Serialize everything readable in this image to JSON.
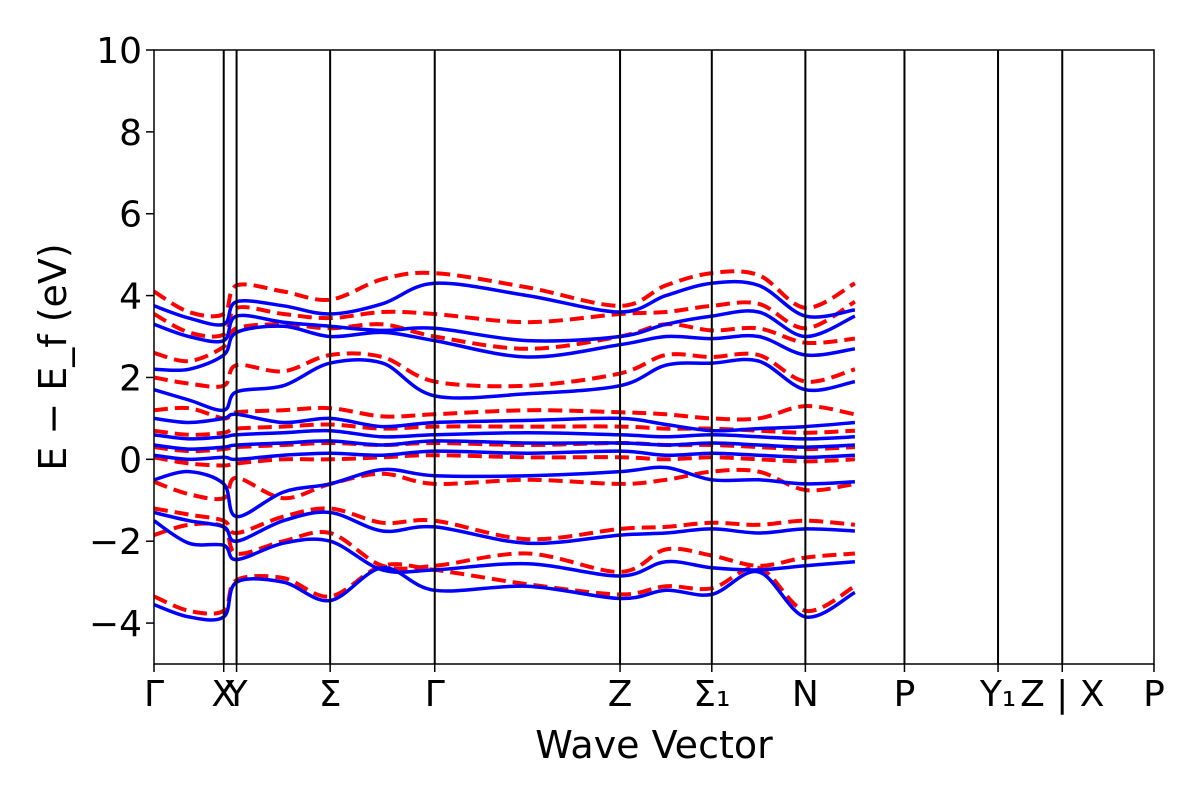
{
  "chart_data": {
    "type": "line",
    "xlabel": "Wave Vector",
    "ylabel": "E − E_f (eV)",
    "ylim": [
      -5,
      10
    ],
    "y_ticks": [
      -4,
      -2,
      0,
      2,
      4,
      6,
      8,
      10
    ],
    "y_tick_labels": [
      "−4",
      "−2",
      "0",
      "2",
      "4",
      "6",
      "8",
      "10"
    ],
    "k_points": [
      {
        "label": "Γ",
        "x": 0.0
      },
      {
        "label": "X",
        "x": 0.38
      },
      {
        "label": "Y",
        "x": 0.45
      },
      {
        "label": "Σ",
        "x": 0.96
      },
      {
        "label": "Γ",
        "x": 1.53
      },
      {
        "label": "Z",
        "x": 2.54
      },
      {
        "label": "Σ₁",
        "x": 3.04
      },
      {
        "label": "N",
        "x": 3.55
      },
      {
        "label": "P",
        "x": 4.09
      },
      {
        "label": "Y₁",
        "x": 4.6
      },
      {
        "label": "Z | X",
        "x": 4.95
      },
      {
        "label": "P",
        "x": 5.45
      }
    ],
    "grid": false,
    "legend": "none",
    "series": [
      {
        "style": "solid",
        "color": "#0000ff",
        "bands": [
          [
            -3.55,
            -3.85,
            -3.85,
            -3.0,
            -3.0,
            -3.45,
            -2.65,
            -3.2,
            -3.1,
            -3.4,
            -3.2,
            -3.3,
            -2.75,
            -3.85,
            -3.25
          ],
          [
            -1.5,
            -2.05,
            -2.1,
            -2.45,
            -2.05,
            -2.0,
            -2.7,
            -2.7,
            -2.55,
            -2.85,
            -2.5,
            -2.65,
            -2.7,
            -2.6,
            -2.5
          ],
          [
            -1.3,
            -1.5,
            -1.65,
            -2.0,
            -1.5,
            -1.3,
            -1.75,
            -1.65,
            -2.05,
            -1.85,
            -1.8,
            -1.7,
            -1.8,
            -1.7,
            -1.75
          ],
          [
            -0.5,
            -0.3,
            -0.6,
            -1.4,
            -0.8,
            -0.6,
            -0.25,
            -0.4,
            -0.4,
            -0.3,
            -0.2,
            -0.5,
            -0.5,
            -0.6,
            -0.55
          ],
          [
            0.1,
            0.0,
            0.05,
            0.0,
            0.1,
            0.15,
            0.1,
            0.2,
            0.15,
            0.2,
            0.1,
            0.15,
            0.1,
            0.05,
            0.1
          ],
          [
            0.35,
            0.25,
            0.3,
            0.35,
            0.4,
            0.45,
            0.35,
            0.45,
            0.4,
            0.4,
            0.35,
            0.4,
            0.35,
            0.3,
            0.35
          ],
          [
            0.6,
            0.5,
            0.55,
            0.6,
            0.65,
            0.7,
            0.55,
            0.6,
            0.65,
            0.6,
            0.55,
            0.6,
            0.55,
            0.5,
            0.55
          ],
          [
            1.0,
            0.9,
            1.0,
            1.1,
            0.9,
            1.0,
            0.8,
            0.9,
            0.95,
            1.0,
            0.85,
            0.7,
            0.75,
            0.8,
            0.9
          ],
          [
            1.7,
            1.45,
            1.2,
            1.65,
            1.8,
            2.35,
            2.35,
            1.55,
            1.6,
            1.8,
            2.3,
            2.35,
            2.4,
            1.7,
            1.9
          ],
          [
            2.2,
            2.2,
            2.55,
            3.1,
            3.25,
            3.0,
            3.1,
            2.9,
            2.5,
            2.8,
            3.0,
            2.95,
            3.0,
            2.55,
            2.7
          ],
          [
            3.3,
            3.0,
            2.9,
            3.5,
            3.35,
            3.25,
            3.15,
            3.2,
            2.9,
            3.0,
            3.3,
            3.5,
            3.6,
            3.0,
            3.5
          ],
          [
            3.75,
            3.45,
            3.3,
            3.85,
            3.75,
            3.55,
            3.8,
            4.3,
            4.0,
            3.6,
            4.0,
            4.3,
            4.25,
            3.5,
            3.65
          ]
        ]
      },
      {
        "style": "dashed",
        "color": "#ff0000",
        "bands": [
          [
            -3.35,
            -3.7,
            -3.7,
            -2.95,
            -2.9,
            -3.35,
            -2.6,
            -2.7,
            -3.05,
            -3.3,
            -3.1,
            -3.15,
            -2.65,
            -3.7,
            -3.1
          ],
          [
            -1.85,
            -1.6,
            -1.65,
            -2.3,
            -2.0,
            -1.8,
            -2.6,
            -2.6,
            -2.3,
            -2.75,
            -2.2,
            -2.35,
            -2.6,
            -2.4,
            -2.3
          ],
          [
            -1.2,
            -1.35,
            -1.5,
            -1.8,
            -1.4,
            -1.2,
            -1.55,
            -1.5,
            -1.95,
            -1.7,
            -1.65,
            -1.55,
            -1.6,
            -1.5,
            -1.6
          ],
          [
            -0.55,
            -0.85,
            -0.95,
            -0.45,
            -0.95,
            -0.6,
            -0.35,
            -0.6,
            -0.5,
            -0.6,
            -0.5,
            -0.3,
            -0.3,
            -0.75,
            -0.6
          ],
          [
            0.05,
            -0.1,
            -0.15,
            -0.1,
            0.0,
            0.0,
            0.05,
            0.1,
            0.05,
            0.05,
            0.0,
            0.05,
            0.0,
            -0.05,
            0.0
          ],
          [
            0.3,
            0.2,
            0.25,
            0.3,
            0.35,
            0.4,
            0.35,
            0.4,
            0.35,
            0.4,
            0.35,
            0.35,
            0.3,
            0.25,
            0.3
          ],
          [
            0.7,
            0.6,
            0.65,
            0.75,
            0.8,
            0.85,
            0.75,
            0.8,
            0.8,
            0.8,
            0.75,
            0.75,
            0.7,
            0.65,
            0.7
          ],
          [
            1.2,
            1.25,
            1.0,
            1.15,
            1.2,
            1.25,
            1.05,
            1.1,
            1.2,
            1.15,
            1.1,
            1.0,
            1.0,
            1.3,
            1.1
          ],
          [
            2.0,
            1.85,
            1.8,
            2.3,
            2.15,
            2.55,
            2.5,
            1.9,
            1.8,
            2.1,
            2.55,
            2.5,
            2.55,
            1.9,
            2.2
          ],
          [
            2.6,
            2.4,
            2.75,
            3.2,
            3.3,
            3.2,
            3.3,
            3.0,
            2.7,
            3.0,
            3.3,
            3.15,
            3.2,
            2.85,
            2.95
          ],
          [
            3.55,
            3.1,
            3.05,
            3.7,
            3.55,
            3.45,
            3.6,
            3.55,
            3.35,
            3.55,
            3.6,
            3.75,
            3.8,
            3.2,
            3.85
          ],
          [
            4.1,
            3.6,
            3.55,
            4.25,
            4.1,
            3.9,
            4.4,
            4.55,
            4.2,
            3.75,
            4.25,
            4.55,
            4.5,
            3.7,
            4.3
          ]
        ]
      }
    ]
  }
}
